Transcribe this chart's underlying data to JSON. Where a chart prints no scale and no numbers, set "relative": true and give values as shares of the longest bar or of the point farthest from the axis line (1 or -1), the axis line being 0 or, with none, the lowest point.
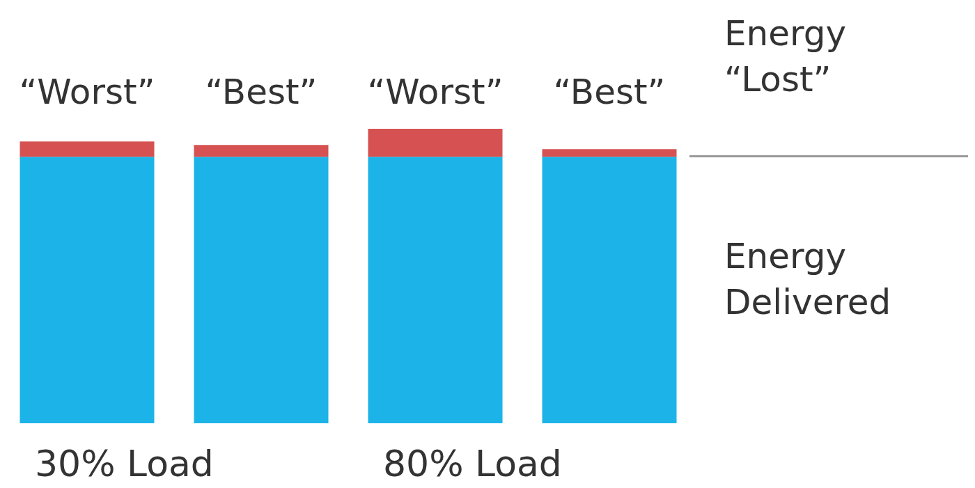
{
  "chart_data": {
    "type": "bar",
    "relative": true,
    "stacked": true,
    "categories": [
      "“Worst”",
      "“Best”",
      "“Worst”",
      "“Best”"
    ],
    "series": [
      {
        "name": "Energy Delivered",
        "color": "#1cb4e8",
        "values": [
          0.905,
          0.905,
          0.905,
          0.905
        ]
      },
      {
        "name": "Energy “Lost”",
        "color": "#d65252",
        "values": [
          0.052,
          0.04,
          0.095,
          0.026
        ]
      }
    ],
    "annotations": [
      "30% Load",
      "80% Load"
    ]
  }
}
